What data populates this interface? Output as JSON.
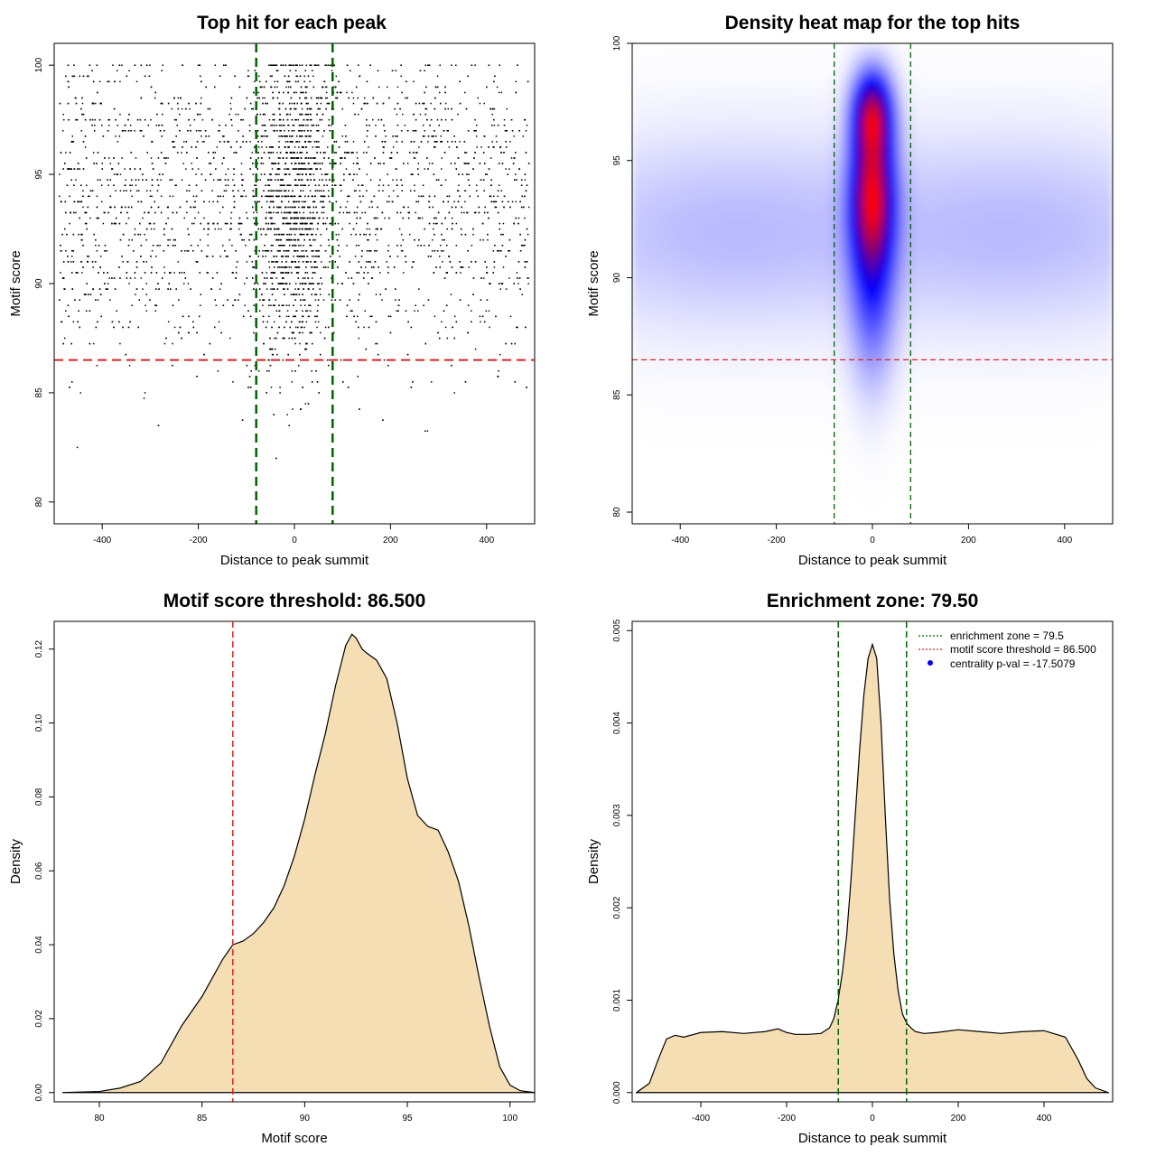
{
  "chart_data": [
    {
      "type": "scatter",
      "title": "Top hit for each peak",
      "xlabel": "Distance to peak summit",
      "ylabel": "Motif score",
      "xlim": [
        -500,
        500
      ],
      "ylim": [
        79,
        101
      ],
      "xticks": [
        -400,
        -200,
        0,
        200,
        400
      ],
      "yticks": [
        80,
        85,
        90,
        95,
        100
      ],
      "grid": false,
      "reference_lines": {
        "vertical": [
          -79.5,
          79.5
        ],
        "vertical_color": "#006400",
        "horizontal": [
          86.5
        ],
        "horizontal_color": "#dd2222"
      },
      "point_distribution": {
        "x_range": [
          -490,
          490
        ],
        "central_sd": 40,
        "central_fraction": 0.33,
        "y_peaks": [
          93.5,
          97.5
        ],
        "y_min": 80.5,
        "y_max": 100
      }
    },
    {
      "type": "heatmap",
      "title": "Density heat map for the top hits",
      "xlabel": "Distance to peak summit",
      "ylabel": "Motif score",
      "xlim": [
        -500,
        500
      ],
      "ylim": [
        79.5,
        100
      ],
      "xticks": [
        -400,
        -200,
        0,
        200,
        400
      ],
      "yticks": [
        80,
        85,
        90,
        95,
        100
      ],
      "color_scale": [
        "#ffffff",
        "#0000ff",
        "#ff0000"
      ],
      "density_components": [
        {
          "x": 0,
          "y": 93.5,
          "sx": 30,
          "sy": 2.2,
          "w": 1.0
        },
        {
          "x": 0,
          "y": 97.0,
          "sx": 27,
          "sy": 1.2,
          "w": 0.8
        },
        {
          "x": 0,
          "y": 89.0,
          "sx": 32,
          "sy": 2.5,
          "w": 0.28
        },
        {
          "x": -320,
          "y": 92.0,
          "sx": 260,
          "sy": 2.8,
          "w": 0.12
        },
        {
          "x": 320,
          "y": 92.0,
          "sx": 260,
          "sy": 2.8,
          "w": 0.12
        }
      ],
      "reference_lines": {
        "vertical": [
          -79.5,
          79.5
        ],
        "horizontal": [
          86.5
        ]
      }
    },
    {
      "type": "area",
      "title": "Motif score threshold: 86.500",
      "xlabel": "Motif score",
      "ylabel": "Density",
      "xlim": [
        77.8,
        101.2
      ],
      "ylim": [
        -0.0025,
        0.1275
      ],
      "xticks": [
        80,
        85,
        90,
        95,
        100
      ],
      "yticks": [
        0.0,
        0.02,
        0.04,
        0.06,
        0.08,
        0.1,
        0.12
      ],
      "ytick_labels": [
        "0.00",
        "0.02",
        "0.04",
        "0.06",
        "0.08",
        "0.10",
        "0.12"
      ],
      "fill": "#f5deb3",
      "x": [
        78.2,
        80,
        81,
        82,
        83,
        83.5,
        84,
        84.5,
        85,
        85.5,
        86,
        86.5,
        87,
        87.5,
        88,
        88.5,
        89,
        89.5,
        90,
        90.5,
        91,
        91.5,
        92,
        92.3,
        92.5,
        92.8,
        93,
        93.5,
        94,
        94.5,
        95,
        95.5,
        96,
        96.5,
        97,
        97.5,
        98,
        98.5,
        99,
        99.5,
        100,
        100.5,
        101.2
      ],
      "y": [
        0.0,
        0.0003,
        0.0012,
        0.003,
        0.008,
        0.013,
        0.018,
        0.022,
        0.026,
        0.031,
        0.036,
        0.04,
        0.041,
        0.043,
        0.046,
        0.05,
        0.056,
        0.064,
        0.074,
        0.086,
        0.097,
        0.11,
        0.121,
        0.124,
        0.123,
        0.12,
        0.119,
        0.117,
        0.112,
        0.1,
        0.085,
        0.075,
        0.072,
        0.071,
        0.065,
        0.057,
        0.045,
        0.031,
        0.018,
        0.007,
        0.002,
        0.0005,
        0.0
      ],
      "reference_lines": {
        "vertical": [
          86.5
        ],
        "vertical_color": "#dd2222"
      }
    },
    {
      "type": "area",
      "title": "Enrichment zone: 79.50",
      "xlabel": "Distance to peak summit",
      "ylabel": "Density",
      "xlim": [
        -560,
        560
      ],
      "ylim": [
        -0.0001,
        0.0051
      ],
      "xticks": [
        -400,
        -200,
        0,
        200,
        400
      ],
      "yticks": [
        0.0,
        0.001,
        0.002,
        0.003,
        0.004,
        0.005
      ],
      "ytick_labels": [
        "0.000",
        "0.001",
        "0.002",
        "0.003",
        "0.004",
        "0.005"
      ],
      "fill": "#f5deb3",
      "x": [
        -550,
        -520,
        -500,
        -480,
        -460,
        -440,
        -400,
        -350,
        -300,
        -250,
        -220,
        -200,
        -180,
        -150,
        -120,
        -100,
        -90,
        -80,
        -70,
        -60,
        -50,
        -40,
        -30,
        -20,
        -10,
        0,
        10,
        20,
        30,
        40,
        50,
        60,
        70,
        80,
        90,
        100,
        120,
        150,
        200,
        250,
        300,
        350,
        400,
        450,
        480,
        500,
        520,
        550
      ],
      "y": [
        0.0,
        0.0001,
        0.00035,
        0.00058,
        0.00062,
        0.0006,
        0.00065,
        0.00066,
        0.00064,
        0.00066,
        0.00069,
        0.00065,
        0.00063,
        0.00063,
        0.00064,
        0.0007,
        0.0008,
        0.001,
        0.0013,
        0.0017,
        0.0023,
        0.003,
        0.0037,
        0.0043,
        0.0047,
        0.00485,
        0.0047,
        0.004,
        0.003,
        0.0021,
        0.0015,
        0.0011,
        0.00085,
        0.00075,
        0.0007,
        0.00066,
        0.00064,
        0.00065,
        0.00068,
        0.00066,
        0.00064,
        0.00066,
        0.00067,
        0.0006,
        0.00035,
        0.00015,
        5e-05,
        0.0
      ],
      "reference_lines": {
        "vertical": [
          -79.5,
          79.5
        ],
        "vertical_color": "#006400"
      },
      "legend": {
        "position": "top-right",
        "entries": [
          {
            "label": "enrichment zone = 79.5",
            "color": "#006400",
            "style": "dotted-line"
          },
          {
            "label": "motif score threshold = 86.500",
            "color": "#dd2222",
            "style": "dotted-line"
          },
          {
            "label": "centrality p-val = -17.5079",
            "color": "#0000ff",
            "style": "point"
          }
        ]
      }
    }
  ]
}
